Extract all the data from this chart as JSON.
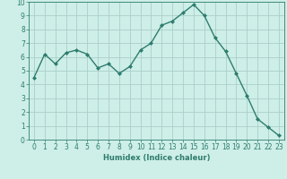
{
  "x": [
    0,
    1,
    2,
    3,
    4,
    5,
    6,
    7,
    8,
    9,
    10,
    11,
    12,
    13,
    14,
    15,
    16,
    17,
    18,
    19,
    20,
    21,
    22,
    23
  ],
  "y": [
    4.5,
    6.2,
    5.5,
    6.3,
    6.5,
    6.2,
    5.2,
    5.5,
    4.8,
    5.3,
    6.5,
    7.0,
    8.3,
    8.6,
    9.2,
    9.8,
    9.0,
    7.4,
    6.4,
    4.8,
    3.2,
    1.5,
    0.9,
    0.3
  ],
  "line_color": "#2e7d6e",
  "marker": "D",
  "marker_size": 2.0,
  "linewidth": 1.0,
  "xlabel": "Humidex (Indice chaleur)",
  "xlim": [
    -0.5,
    23.5
  ],
  "ylim": [
    0,
    10
  ],
  "bg_color": "#ceeee8",
  "grid_color": "#aacfca",
  "xtick_labels": [
    "0",
    "1",
    "2",
    "3",
    "4",
    "5",
    "6",
    "7",
    "8",
    "9",
    "10",
    "11",
    "12",
    "13",
    "14",
    "15",
    "16",
    "17",
    "18",
    "19",
    "20",
    "21",
    "22",
    "23"
  ],
  "ytick_vals": [
    0,
    1,
    2,
    3,
    4,
    5,
    6,
    7,
    8,
    9,
    10
  ],
  "font_color": "#2e7d6e",
  "xlabel_fontsize": 6.0,
  "tick_fontsize": 5.5
}
